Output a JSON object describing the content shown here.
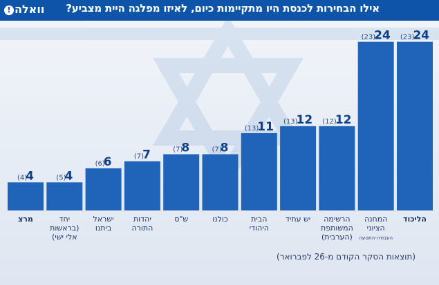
{
  "header": {
    "title": "אילו הבחירות לכנסת היו מתקיימות כיום, לאיזו מפלגה היית מצביע?",
    "logo_text": "וואלה",
    "logo_mark": "!"
  },
  "footnote": "(תוצאות הסקר הקודם מ-26 לפברואר)",
  "colors": {
    "header_bg": "#0e54a8",
    "bar": "#1f64b8",
    "bar_label": "#0e3f86",
    "previous_label": "#2a4a7f"
  },
  "chart_data": {
    "type": "bar",
    "title": "אילו הבחירות לכנסת היו מתקיימות כיום, לאיזו מפלגה היית מצביע?",
    "xlabel": "",
    "ylabel": "",
    "ylim": [
      0,
      27
    ],
    "grid": false,
    "legend": "none",
    "categories": [
      "מרצ",
      "יחד (בראשות אלי ישי)",
      "ישראל ביתנו",
      "יהדות התורה",
      "ש\"ס",
      "כולנו",
      "הבית היהודי",
      "יש עתיד",
      "הרשימה המשותפת (הערבית)",
      "המחנה הציוני",
      "הליכוד"
    ],
    "category_lines": [
      [
        "מרצ"
      ],
      [
        "יחד",
        "(בראשות",
        "אלי ישי)"
      ],
      [
        "ישראל",
        "ביתנו"
      ],
      [
        "יהדות",
        "התורה"
      ],
      [
        "ש\"ס"
      ],
      [
        "כולנו"
      ],
      [
        "הבית",
        "היהודי"
      ],
      [
        "יש עתיד"
      ],
      [
        "הרשימה",
        "המשותפת",
        "(הערבית)"
      ],
      [
        "המחנה",
        "הציוני",
        "העבודה-התנועה"
      ],
      [
        "הליכוד"
      ]
    ],
    "series": [
      {
        "values": [
          4,
          4,
          6,
          7,
          8,
          8,
          11,
          12,
          12,
          24,
          24
        ]
      },
      {
        "values": [
          4,
          5,
          6,
          7,
          7,
          7,
          13,
          13,
          12,
          23,
          23
        ]
      }
    ]
  }
}
